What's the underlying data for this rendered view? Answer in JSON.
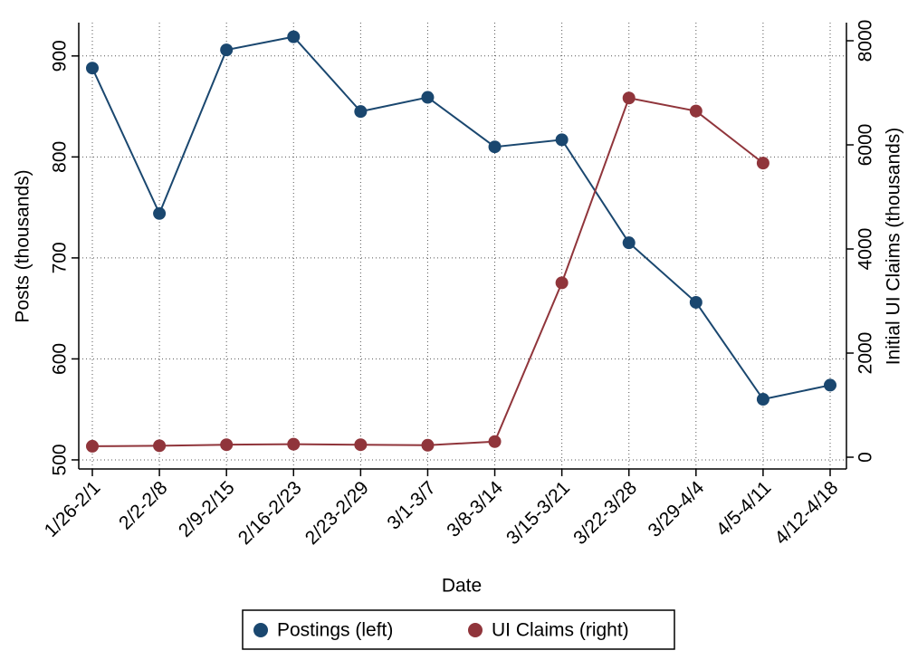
{
  "chart_data": {
    "type": "line",
    "x_label": "Date",
    "y_label": "Posts (thousands)",
    "y2_label": "Initial UI Claims (thousands)",
    "categories": [
      "1/26-2/1",
      "2/2-2/8",
      "2/9-2/15",
      "2/16-2/23",
      "2/23-2/29",
      "3/1-3/7",
      "3/8-3/14",
      "3/15-3/21",
      "3/22-3/28",
      "3/29-4/4",
      "4/5-4/11",
      "4/12-4/18"
    ],
    "series": [
      {
        "name": "Postings (left)",
        "color": "#1a476f",
        "values": [
          888,
          744,
          906,
          919,
          845,
          859,
          810,
          817,
          715,
          656,
          560,
          574
        ]
      },
      {
        "name": "UI Claims (right)",
        "color": "#90353b",
        "axis": "y2",
        "values": [
          210,
          220,
          240,
          250,
          240,
          230,
          300,
          3350,
          6900,
          6650,
          5650,
          null
        ]
      }
    ],
    "ylim": [
      491,
      933
    ],
    "yticks": [
      500,
      600,
      700,
      800,
      900
    ],
    "y2lim": [
      -226,
      8348
    ],
    "y2ticks": [
      0,
      2000,
      4000,
      6000,
      8000
    ],
    "grid": true,
    "legend": "bottom"
  }
}
